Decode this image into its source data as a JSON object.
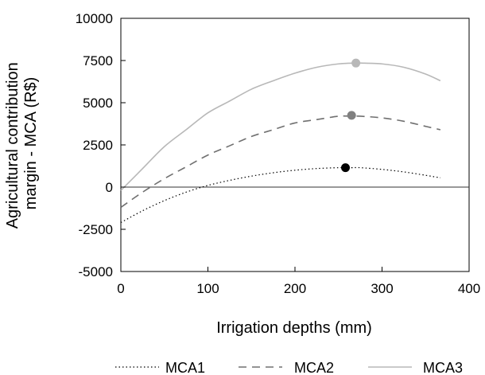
{
  "chart_data": {
    "type": "line",
    "xlabel": "Irrigation depths (mm)",
    "ylabel_lines": [
      "Agricultural contribution",
      "margin - MCA (R$)"
    ],
    "xlim": [
      0,
      400
    ],
    "ylim": [
      -5000,
      10000
    ],
    "x_ticks": [
      0,
      100,
      200,
      300,
      400
    ],
    "y_ticks": [
      -5000,
      -2500,
      0,
      2500,
      5000,
      7500,
      10000
    ],
    "x_tick_labels": [
      "0",
      "100",
      "200",
      "300",
      "400"
    ],
    "y_tick_labels": [
      "-5000",
      "-2500",
      "0",
      "2500",
      "5000",
      "7500",
      "10000"
    ],
    "grid": false,
    "zero_line": true,
    "legend_position": "bottom",
    "series": [
      {
        "name": "MCA1",
        "style": "dotted",
        "color": "#000000",
        "x": [
          0,
          25,
          50,
          75,
          100,
          125,
          150,
          175,
          200,
          225,
          250,
          265,
          275,
          300,
          325,
          350,
          367
        ],
        "values": [
          -2100,
          -1400,
          -800,
          -300,
          100,
          400,
          650,
          850,
          1000,
          1100,
          1150,
          1150,
          1150,
          1050,
          900,
          700,
          550
        ],
        "optimum": {
          "x": 258,
          "y": 1150
        },
        "marker_color": "#000000"
      },
      {
        "name": "MCA2",
        "style": "dashed",
        "color": "#707070",
        "x": [
          0,
          25,
          50,
          75,
          100,
          125,
          150,
          175,
          200,
          225,
          250,
          265,
          275,
          300,
          325,
          350,
          367
        ],
        "values": [
          -1200,
          -300,
          500,
          1200,
          1900,
          2450,
          3000,
          3400,
          3800,
          4000,
          4200,
          4200,
          4200,
          4100,
          3900,
          3600,
          3400
        ],
        "optimum": {
          "x": 265,
          "y": 4250
        },
        "marker_color": "#808080"
      },
      {
        "name": "MCA3",
        "style": "solid",
        "color": "#b8b8b8",
        "x": [
          0,
          25,
          50,
          75,
          100,
          125,
          150,
          175,
          200,
          225,
          250,
          270,
          275,
          300,
          325,
          350,
          367
        ],
        "values": [
          -200,
          1100,
          2400,
          3400,
          4400,
          5100,
          5800,
          6300,
          6750,
          7100,
          7300,
          7350,
          7350,
          7300,
          7100,
          6700,
          6300
        ],
        "optimum": {
          "x": 270,
          "y": 7350
        },
        "marker_color": "#b8b8b8"
      }
    ]
  }
}
